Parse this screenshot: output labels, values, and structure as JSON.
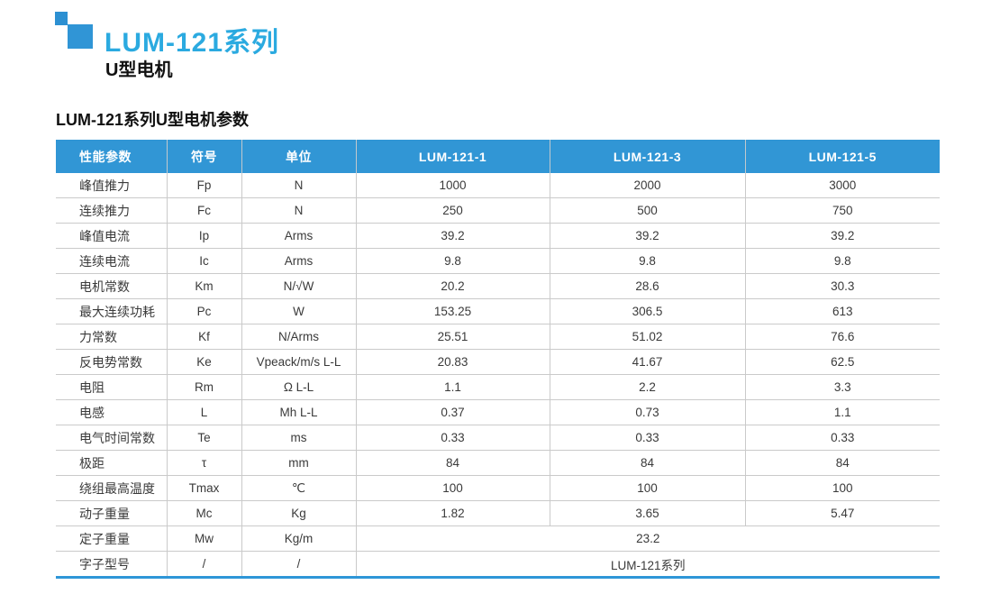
{
  "page": {
    "logo_title": "LUM-121系列",
    "logo_subtitle": "U型电机",
    "section_title": "LUM-121系列U型电机参数"
  },
  "colors": {
    "logo_square_blue": "#3095d6",
    "title_cyan": "#2baae0",
    "table_header_blue": "#3196d5",
    "table_bottom_bar_blue": "#2e96d8",
    "grid_line_gray": "#cacaca",
    "body_text": "#3a3a3a"
  },
  "table": {
    "headers": [
      "性能参数",
      "符号",
      "单位",
      "LUM-121-1",
      "LUM-121-3",
      "LUM-121-5"
    ],
    "rows": [
      {
        "label": "峰值推力",
        "symbol": "Fp",
        "unit": "N",
        "values": [
          "1000",
          "2000",
          "3000"
        ]
      },
      {
        "label": "连续推力",
        "symbol": "Fc",
        "unit": "N",
        "values": [
          "250",
          "500",
          "750"
        ]
      },
      {
        "label": "峰值电流",
        "symbol": "Ip",
        "unit": "Arms",
        "values": [
          "39.2",
          "39.2",
          "39.2"
        ]
      },
      {
        "label": "连续电流",
        "symbol": "Ic",
        "unit": "Arms",
        "values": [
          "9.8",
          "9.8",
          "9.8"
        ]
      },
      {
        "label": "电机常数",
        "symbol": "Km",
        "unit": "N/√W",
        "values": [
          "20.2",
          "28.6",
          "30.3"
        ]
      },
      {
        "label": "最大连续功耗",
        "symbol": "Pc",
        "unit": "W",
        "values": [
          "153.25",
          "306.5",
          "613"
        ]
      },
      {
        "label": "力常数",
        "symbol": "Kf",
        "unit": "N/Arms",
        "values": [
          "25.51",
          "51.02",
          "76.6"
        ]
      },
      {
        "label": "反电势常数",
        "symbol": "Ke",
        "unit": "Vpeack/m/s L-L",
        "values": [
          "20.83",
          "41.67",
          "62.5"
        ]
      },
      {
        "label": "电阻",
        "symbol": "Rm",
        "unit": "Ω L-L",
        "values": [
          "1.1",
          "2.2",
          "3.3"
        ]
      },
      {
        "label": "电感",
        "symbol": "L",
        "unit": "Mh L-L",
        "values": [
          "0.37",
          "0.73",
          "1.1"
        ]
      },
      {
        "label": "电气时间常数",
        "symbol": "Te",
        "unit": "ms",
        "values": [
          "0.33",
          "0.33",
          "0.33"
        ]
      },
      {
        "label": "极距",
        "symbol": "τ",
        "unit": "mm",
        "values": [
          "84",
          "84",
          "84"
        ]
      },
      {
        "label": "绕组最高温度",
        "symbol": "Tmax",
        "unit": "℃",
        "values": [
          "100",
          "100",
          "100"
        ]
      },
      {
        "label": "动子重量",
        "symbol": "Mc",
        "unit": "Kg",
        "values": [
          "1.82",
          "3.65",
          "5.47"
        ]
      },
      {
        "label": "定子重量",
        "symbol": "Mw",
        "unit": "Kg/m",
        "values": [
          "23.2"
        ],
        "merged": true
      },
      {
        "label": "字子型号",
        "symbol": "/",
        "unit": "/",
        "values": [
          "LUM-121系列"
        ],
        "merged": true
      }
    ]
  }
}
